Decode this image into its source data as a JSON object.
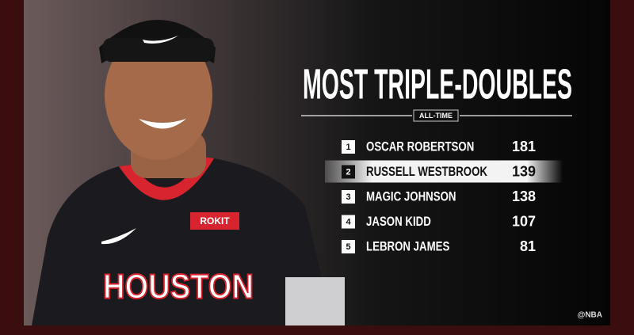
{
  "header": {
    "title": "MOST TRIPLE-DOUBLES",
    "subtitle": "ALL-TIME"
  },
  "table": {
    "rows": [
      {
        "rank": 1,
        "player": "OSCAR ROBERTSON",
        "value": 181
      },
      {
        "rank": 2,
        "player": "RUSSELL WESTBROOK",
        "value": 139
      },
      {
        "rank": 3,
        "player": "MAGIC JOHNSON",
        "value": 138
      },
      {
        "rank": 4,
        "player": "JASON KIDD",
        "value": 107
      },
      {
        "rank": 5,
        "player": "LEBRON JAMES",
        "value": 81
      }
    ]
  },
  "photo": {
    "jersey": "HOUSTON",
    "sponsor": "ROKIT"
  },
  "credit": "@NBA"
}
